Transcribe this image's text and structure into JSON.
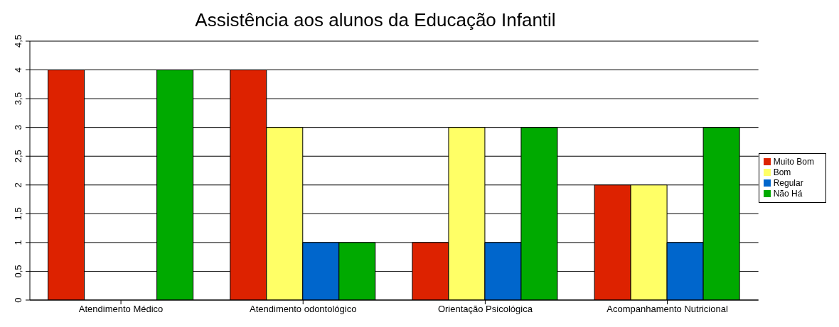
{
  "chart_data": {
    "type": "bar",
    "title": "Assistência aos alunos da Educação Infantil",
    "categories": [
      "Atendimento Médico",
      "Atendimento odontológico",
      "Orientação Psicológica",
      "Acompanhamento Nutricional"
    ],
    "series": [
      {
        "name": "Muito Bom",
        "color": "#dd2200",
        "values": [
          4,
          4,
          1,
          2
        ]
      },
      {
        "name": "Bom",
        "color": "#ffff66",
        "values": [
          0,
          3,
          3,
          2
        ]
      },
      {
        "name": "Regular",
        "color": "#0066cc",
        "values": [
          0,
          1,
          1,
          1
        ]
      },
      {
        "name": "Não Há",
        "color": "#00aa00",
        "values": [
          4,
          1,
          3,
          3
        ]
      }
    ],
    "ylim": [
      0,
      4.5
    ],
    "yticks": [
      0,
      {
        "value": 0.5,
        "label": "0,5"
      },
      1,
      {
        "value": 1.5,
        "label": "1,5"
      },
      2,
      {
        "value": 2.5,
        "label": "2,5"
      },
      3,
      {
        "value": 3.5,
        "label": "3,5"
      },
      4,
      {
        "value": 4.5,
        "label": "4,5"
      }
    ],
    "grid": "y",
    "legend": "right"
  }
}
